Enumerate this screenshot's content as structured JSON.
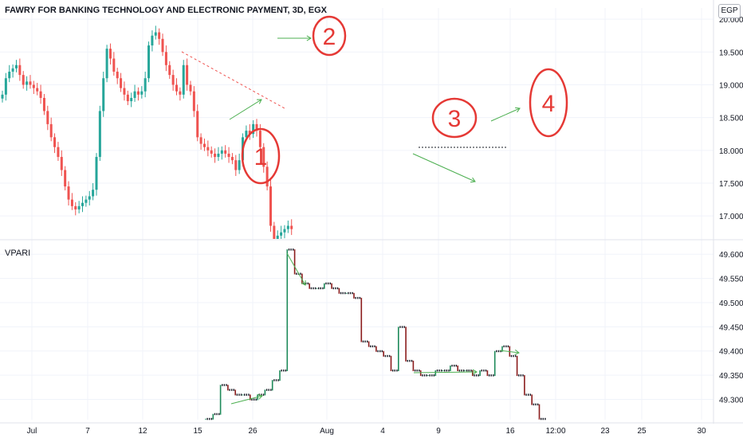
{
  "chart_data": [
    {
      "type": "candlestick",
      "title": "FAWRY FOR BANKING TECHNOLOGY AND ELECTRONIC PAYMENT, 3D, EGX",
      "currency": "EGP",
      "ylim": [
        16.65,
        20.05
      ],
      "y_ticks": [
        "20.000",
        "19.500",
        "19.000",
        "18.500",
        "18.000",
        "17.500",
        "17.000"
      ],
      "x_ticks": [
        "Jul",
        "7",
        "12",
        "15",
        "26",
        "Aug",
        "4",
        "9",
        "16",
        "12:00",
        "23",
        "25",
        "30"
      ],
      "closes": [
        18.85,
        19.1,
        19.2,
        19.25,
        19.3,
        19.15,
        19.0,
        19.05,
        19.0,
        18.95,
        18.9,
        18.8,
        18.6,
        18.4,
        18.2,
        18.05,
        17.9,
        17.7,
        17.45,
        17.25,
        17.15,
        17.1,
        17.15,
        17.2,
        17.25,
        17.3,
        17.4,
        17.9,
        18.6,
        19.1,
        19.55,
        19.4,
        19.2,
        19.1,
        18.95,
        18.85,
        18.75,
        18.8,
        18.9,
        18.85,
        18.9,
        19.1,
        19.6,
        19.75,
        19.8,
        19.7,
        19.5,
        19.3,
        19.15,
        19.0,
        18.9,
        18.85,
        19.3,
        19.0,
        18.9,
        18.6,
        18.2,
        18.1,
        18.05,
        18.0,
        17.95,
        17.9,
        17.95,
        18.0,
        17.95,
        17.9,
        17.85,
        17.7,
        17.85,
        18.2,
        18.3,
        18.25,
        18.4,
        18.3,
        18.05,
        17.75,
        17.45,
        16.85,
        16.65,
        16.7,
        16.75,
        16.8,
        16.85,
        16.8
      ],
      "annotations": [
        "1",
        "2",
        "3",
        "4"
      ]
    },
    {
      "type": "step",
      "title": "VPARI",
      "ylim": [
        49.258,
        49.625
      ],
      "y_ticks": [
        "49.600",
        "49.550",
        "49.500",
        "49.450",
        "49.400",
        "49.350",
        "49.300"
      ],
      "values": [
        49.26,
        49.27,
        49.33,
        49.32,
        49.31,
        49.31,
        49.3,
        49.31,
        49.32,
        49.34,
        49.36,
        49.61,
        49.56,
        49.54,
        49.53,
        49.53,
        49.54,
        49.53,
        49.52,
        49.52,
        49.51,
        49.42,
        49.41,
        49.4,
        49.39,
        49.36,
        49.45,
        49.38,
        49.36,
        49.35,
        49.35,
        49.36,
        49.36,
        49.37,
        49.36,
        49.36,
        49.35,
        49.36,
        49.35,
        49.4,
        49.41,
        49.39,
        49.35,
        49.31,
        49.29,
        49.26
      ]
    }
  ]
}
